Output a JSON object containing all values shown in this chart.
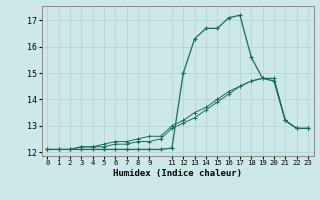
{
  "xlabel": "Humidex (Indice chaleur)",
  "background_color": "#cde8e8",
  "grid_color": "#b8d4d4",
  "line_color": "#1a6b5a",
  "xlim": [
    -0.5,
    23.5
  ],
  "ylim": [
    11.85,
    17.55
  ],
  "yticks": [
    12,
    13,
    14,
    15,
    16,
    17
  ],
  "xticks": [
    0,
    1,
    2,
    3,
    4,
    5,
    6,
    7,
    8,
    9,
    11,
    12,
    13,
    14,
    15,
    16,
    17,
    18,
    19,
    20,
    21,
    22,
    23
  ],
  "series1_x": [
    0,
    1,
    2,
    3,
    4,
    5,
    6,
    7,
    8,
    9,
    10,
    11,
    12,
    13,
    14,
    15,
    16,
    17,
    18,
    19,
    20,
    21,
    22,
    23
  ],
  "series1_y": [
    12.1,
    12.1,
    12.1,
    12.1,
    12.1,
    12.1,
    12.1,
    12.1,
    12.1,
    12.1,
    12.1,
    12.15,
    15.0,
    16.3,
    16.7,
    16.7,
    17.1,
    17.2,
    15.6,
    14.8,
    14.7,
    13.2,
    12.9,
    12.9
  ],
  "series2_x": [
    0,
    1,
    2,
    3,
    4,
    5,
    6,
    7,
    8,
    9,
    10,
    11,
    12,
    13,
    14,
    15,
    16,
    17,
    18,
    19,
    20,
    21,
    22,
    23
  ],
  "series2_y": [
    12.1,
    12.1,
    12.1,
    12.2,
    12.2,
    12.2,
    12.3,
    12.3,
    12.4,
    12.4,
    12.5,
    12.9,
    13.1,
    13.3,
    13.6,
    13.9,
    14.2,
    14.5,
    14.7,
    14.8,
    14.8,
    13.2,
    12.9,
    12.9
  ],
  "series3_x": [
    0,
    1,
    2,
    3,
    4,
    5,
    6,
    7,
    8,
    9,
    10,
    11,
    12,
    13,
    14,
    15,
    16,
    17,
    18,
    19,
    20,
    21,
    22,
    23
  ],
  "series3_y": [
    12.1,
    12.1,
    12.1,
    12.2,
    12.2,
    12.3,
    12.4,
    12.4,
    12.5,
    12.6,
    12.6,
    13.0,
    13.2,
    13.5,
    13.7,
    14.0,
    14.3,
    14.5,
    14.7,
    14.8,
    14.8,
    13.2,
    12.9,
    12.9
  ]
}
